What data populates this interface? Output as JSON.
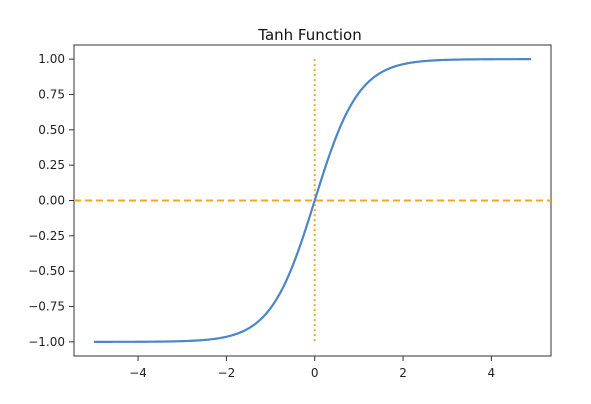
{
  "chart_data": {
    "type": "line",
    "title": "Tanh Function",
    "xlabel": "",
    "ylabel": "",
    "xlim": [
      -5.45,
      5.35
    ],
    "ylim": [
      -1.1,
      1.1
    ],
    "xticks": [
      -4,
      -2,
      0,
      2,
      4
    ],
    "xtick_labels": [
      "−4",
      "−2",
      "0",
      "2",
      "4"
    ],
    "yticks": [
      1.0,
      0.75,
      0.5,
      0.25,
      0.0,
      -0.25,
      -0.5,
      -0.75,
      -1.0
    ],
    "ytick_labels": [
      "1.00",
      "0.75",
      "0.50",
      "0.25",
      "0.00",
      "−0.25",
      "−0.50",
      "−0.75",
      "−1.00"
    ],
    "grid": false,
    "series": [
      {
        "function": "tanh",
        "x_range": [
          -5.0,
          4.9
        ],
        "color": "#4a86c8",
        "x": [
          -5.0,
          -4.5,
          -4.0,
          -3.5,
          -3.0,
          -2.5,
          -2.0,
          -1.5,
          -1.0,
          -0.5,
          0.0,
          0.5,
          1.0,
          1.5,
          2.0,
          2.5,
          3.0,
          3.5,
          4.0,
          4.5,
          4.9
        ],
        "y": [
          -0.9999,
          -0.9998,
          -0.9993,
          -0.9982,
          -0.9951,
          -0.9866,
          -0.964,
          -0.9051,
          -0.7616,
          -0.4621,
          0.0,
          0.4621,
          0.7616,
          0.9051,
          0.964,
          0.9866,
          0.9951,
          0.9982,
          0.9993,
          0.9998,
          0.9999
        ]
      }
    ],
    "reference_lines": [
      {
        "orientation": "horizontal",
        "y": 0.0,
        "style": "dashed",
        "color": "#f5a623"
      },
      {
        "orientation": "vertical",
        "x": 0.0,
        "y_range": [
          -1.0,
          1.0
        ],
        "style": "dotted",
        "color": "#f5a623"
      }
    ]
  }
}
